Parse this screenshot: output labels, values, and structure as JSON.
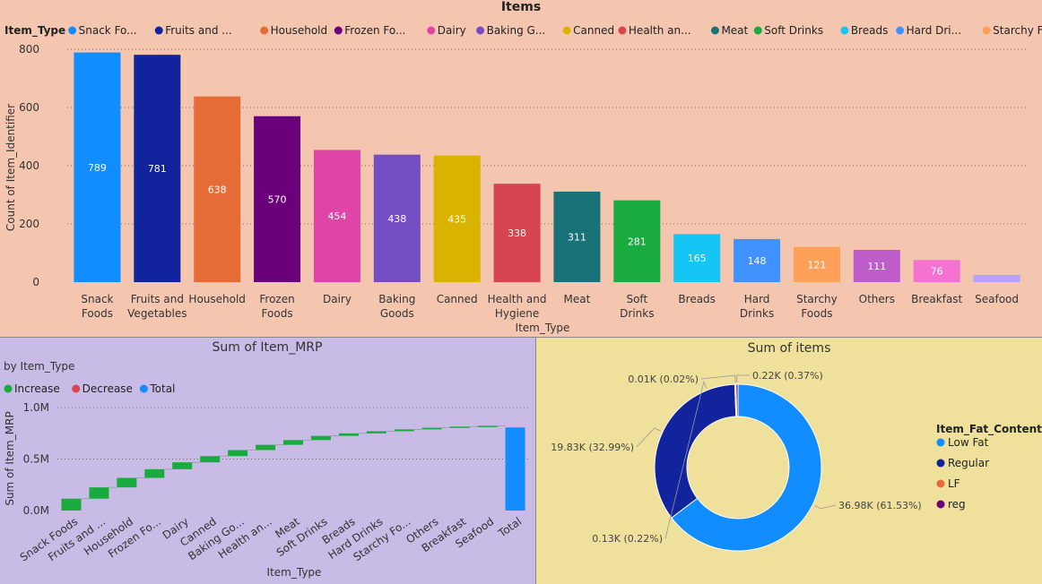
{
  "charts": {
    "items": {
      "title": "Items",
      "legend_title": "Item_Type",
      "legend_labels": [
        "Snack Fo...",
        "Fruits and ...",
        "Household",
        "Frozen Fo...",
        "Dairy",
        "Baking G...",
        "Canned",
        "Health an...",
        "Meat",
        "Soft Drinks",
        "Breads",
        "Hard Dri...",
        "Starchy F...",
        "Others",
        "Breakfast",
        "Seafood"
      ],
      "colors": [
        "#118dff",
        "#12239e",
        "#e66c37",
        "#6b007b",
        "#e044a7",
        "#744ec2",
        "#d9b300",
        "#d64550",
        "#197278",
        "#1aab40",
        "#15c6f4",
        "#4092ff",
        "#ffa058",
        "#be5dc9",
        "#f472d0",
        "#b5a1ff"
      ]
    },
    "mrp": {
      "legend_entries": [
        {
          "label": "Increase",
          "color": "#1aab40"
        },
        {
          "label": "Decrease",
          "color": "#d64550"
        },
        {
          "label": "Total",
          "color": "#118dff"
        }
      ]
    },
    "donut": {
      "legend_title": "Item_Fat_Content",
      "slice_labels": [
        "36.98K (61.53%)",
        "19.83K (32.99%)",
        "0.13K (0.22%)",
        "0.01K (0.02%)",
        "0.22K (0.37%)"
      ]
    }
  },
  "chart_data": [
    {
      "type": "bar",
      "title": "Items",
      "xlabel": "Item_Type",
      "ylabel": "Count of Item_Identifier",
      "categories": [
        "Snack Foods",
        "Fruits and Vegetables",
        "Household",
        "Frozen Foods",
        "Dairy",
        "Baking Goods",
        "Canned",
        "Health and Hygiene",
        "Meat",
        "Soft Drinks",
        "Breads",
        "Hard Drinks",
        "Starchy Foods",
        "Others",
        "Breakfast",
        "Seafood"
      ],
      "values": [
        789,
        781,
        638,
        570,
        454,
        438,
        435,
        338,
        311,
        281,
        165,
        148,
        121,
        111,
        76,
        25
      ],
      "data_labels": [
        "789",
        "781",
        "638",
        "570",
        "454",
        "438",
        "435",
        "338",
        "311",
        "281",
        "165",
        "148",
        "121",
        "111",
        "76",
        ""
      ],
      "ylim": [
        0,
        800
      ],
      "yticks": [
        0,
        200,
        400,
        600,
        800
      ],
      "grid": true,
      "legend": "top"
    },
    {
      "type": "bar",
      "subtype": "waterfall",
      "title": "Sum of Item_MRP",
      "subtitle": "by Item_Type",
      "xlabel": "Item_Type",
      "ylabel": "Sum of Item_MRP",
      "categories": [
        "Snack Foods",
        "Fruits and ...",
        "Household",
        "Frozen Fo...",
        "Dairy",
        "Canned",
        "Baking Go...",
        "Health an...",
        "Meat",
        "Soft Drinks",
        "Breads",
        "Hard Drinks",
        "Starchy Fo...",
        "Others",
        "Breakfast",
        "Seafood",
        "Total"
      ],
      "values": [
        0.115,
        0.11,
        0.092,
        0.084,
        0.067,
        0.061,
        0.058,
        0.051,
        0.046,
        0.041,
        0.024,
        0.021,
        0.018,
        0.016,
        0.011,
        0.008,
        0.807
      ],
      "is_total": [
        false,
        false,
        false,
        false,
        false,
        false,
        false,
        false,
        false,
        false,
        false,
        false,
        false,
        false,
        false,
        false,
        true
      ],
      "ylim": [
        0,
        1.0
      ],
      "yticks": [
        "0.0M",
        "0.5M",
        "1.0M"
      ],
      "unit": "M",
      "grid": true,
      "legend": "top-left"
    },
    {
      "type": "pie",
      "subtype": "donut",
      "title": "Sum of items",
      "legend_title": "Item_Fat_Content",
      "categories": [
        "Low Fat",
        "Regular",
        "LF",
        "reg"
      ],
      "values": [
        36.98,
        19.83,
        0.13,
        0.22
      ],
      "unlabeled_slice": {
        "value": 0.01,
        "label": "0.01K (0.02%)"
      },
      "colors": [
        "#118dff",
        "#12239e",
        "#e66c37",
        "#6b007b"
      ],
      "legend": "right"
    }
  ]
}
